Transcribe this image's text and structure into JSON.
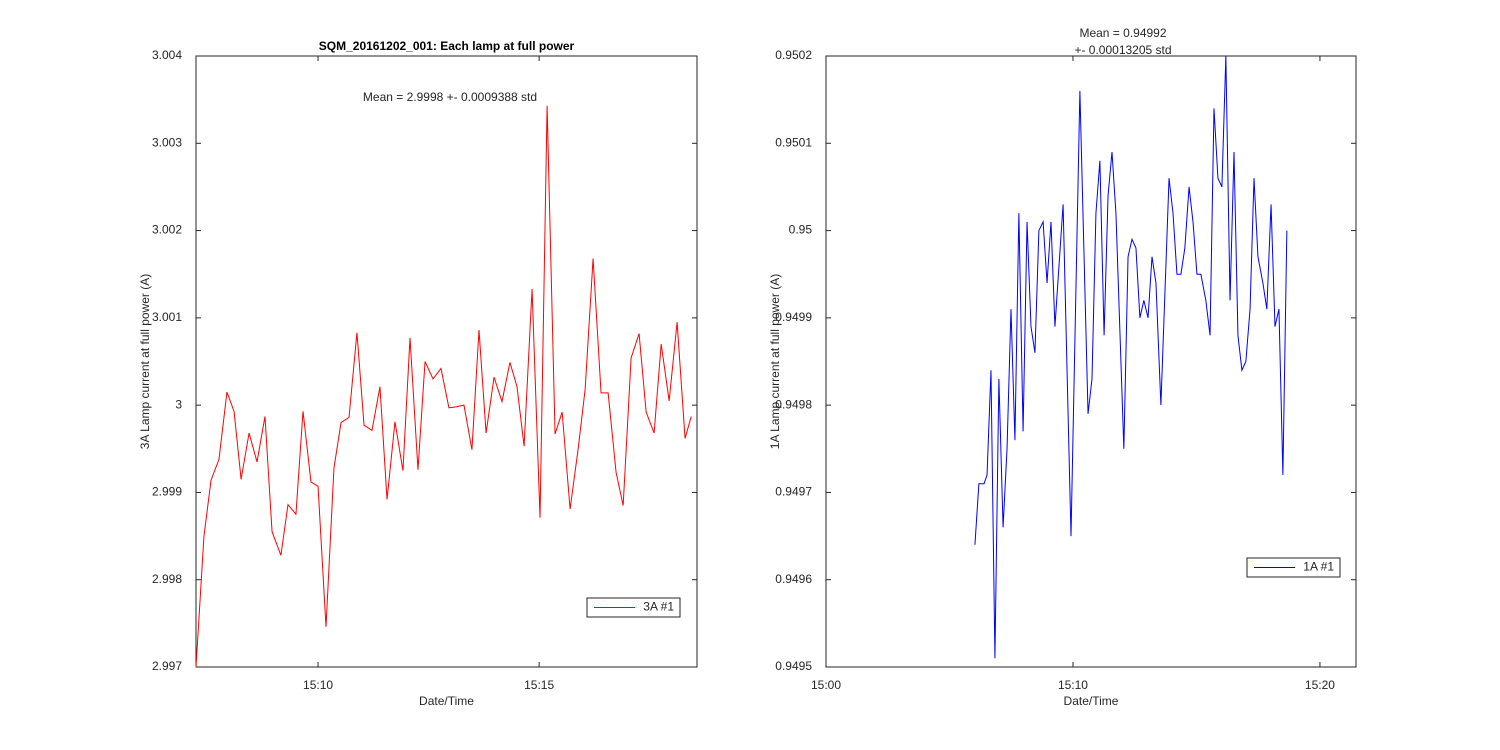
{
  "chart_data": [
    {
      "type": "line",
      "title": "SQM_20161202_001: Each lamp at full power",
      "annotation": "Mean = 2.9998 +- 0.0009388 std",
      "x_label": "Date/Time",
      "y_label": "3A Lamp current at full power (A)",
      "x": [
        7.24,
        7.42,
        7.58,
        7.76,
        7.94,
        8.1,
        8.26,
        8.44,
        8.62,
        8.8,
        8.96,
        9.16,
        9.32,
        9.5,
        9.66,
        9.84,
        10.0,
        10.18,
        10.36,
        10.52,
        10.7,
        10.88,
        11.04,
        11.22,
        11.4,
        11.56,
        11.74,
        11.92,
        12.08,
        12.26,
        12.42,
        12.6,
        12.78,
        12.96,
        13.12,
        13.3,
        13.48,
        13.64,
        13.8,
        13.98,
        14.16,
        14.34,
        14.5,
        14.66,
        14.84,
        15.02,
        15.18,
        15.36,
        15.52,
        15.7,
        15.88,
        16.04,
        16.22,
        16.4,
        16.56,
        16.74,
        16.9,
        17.08,
        17.26,
        17.42,
        17.6,
        17.76,
        17.94,
        18.12,
        18.3,
        18.44
      ],
      "series": [
        {
          "name": "3A #1",
          "color": "#ff0000",
          "values": [
            2.997,
            2.9985,
            2.99914,
            2.99938,
            3.00015,
            2.99993,
            2.99915,
            2.99968,
            2.99935,
            2.99987,
            2.99855,
            2.99828,
            2.99886,
            2.99875,
            2.99993,
            2.99912,
            2.99907,
            2.99746,
            2.99928,
            2.9998,
            2.99986,
            3.00083,
            2.99977,
            2.99971,
            3.00021,
            2.99892,
            2.99981,
            2.99925,
            3.00077,
            2.99926,
            3.0005,
            3.0003,
            3.00042,
            2.99997,
            2.99998,
            3.0,
            2.99949,
            3.00086,
            2.99968,
            3.00032,
            3.00004,
            3.00049,
            3.00021,
            2.99953,
            3.00133,
            2.99871,
            3.00343,
            2.99967,
            2.99992,
            2.99881,
            2.99949,
            3.00018,
            3.00168,
            3.00014,
            3.00014,
            2.99923,
            2.99885,
            3.00054,
            3.00082,
            2.99992,
            2.99968,
            3.0007,
            3.00005,
            3.00095,
            2.99962,
            2.99987
          ]
        }
      ],
      "xlim": [
        7.24,
        18.57
      ],
      "xticks": [
        {
          "value": 10,
          "label": "15:10"
        },
        {
          "value": 15,
          "label": "15:15"
        }
      ],
      "ylim": [
        2.997,
        3.004
      ],
      "yticks": [
        2.997,
        2.998,
        2.999,
        3,
        3.001,
        3.002,
        3.003,
        3.004
      ],
      "grid": false,
      "legend": "lower right"
    },
    {
      "type": "line",
      "title": [
        "Mean = 0.94992",
        "+- 0.00013205 std"
      ],
      "x_label": "Date/Time",
      "y_label": "1A Lamp current at full power (A)",
      "x": [
        6.03,
        6.19,
        6.4,
        6.52,
        6.68,
        6.84,
        7.0,
        7.17,
        7.33,
        7.49,
        7.65,
        7.81,
        7.98,
        8.14,
        8.3,
        8.46,
        8.62,
        8.79,
        8.95,
        9.11,
        9.27,
        9.6,
        9.92,
        10.28,
        10.61,
        10.77,
        10.93,
        11.09,
        11.26,
        11.42,
        11.58,
        11.74,
        12.06,
        12.23,
        12.39,
        12.55,
        12.71,
        12.87,
        13.04,
        13.2,
        13.36,
        13.56,
        13.89,
        14.05,
        14.21,
        14.37,
        14.53,
        14.7,
        14.86,
        15.02,
        15.18,
        15.38,
        15.55,
        15.71,
        15.87,
        16.03,
        16.19,
        16.36,
        16.52,
        16.68,
        16.84,
        17.0,
        17.17,
        17.33,
        17.49,
        17.69,
        17.85,
        18.02,
        18.18,
        18.34,
        18.5,
        18.66
      ],
      "series": [
        {
          "name": "1A #1",
          "color": "#0000ff",
          "values": [
            0.94964,
            0.94971,
            0.94971,
            0.94972,
            0.94984,
            0.94951,
            0.94983,
            0.94966,
            0.94975,
            0.94991,
            0.94976,
            0.95002,
            0.94977,
            0.95001,
            0.94989,
            0.94986,
            0.95,
            0.95001,
            0.94994,
            0.95001,
            0.94989,
            0.95003,
            0.94965,
            0.95016,
            0.94979,
            0.94983,
            0.95002,
            0.95008,
            0.94988,
            0.95004,
            0.95009,
            0.95002,
            0.94975,
            0.94997,
            0.94999,
            0.94998,
            0.9499,
            0.94992,
            0.9499,
            0.94997,
            0.94994,
            0.9498,
            0.95006,
            0.95002,
            0.94995,
            0.94995,
            0.94998,
            0.95005,
            0.95001,
            0.94995,
            0.94995,
            0.94992,
            0.94988,
            0.95014,
            0.95006,
            0.95005,
            0.9502,
            0.94992,
            0.95009,
            0.94988,
            0.94984,
            0.94985,
            0.94991,
            0.95006,
            0.94997,
            0.94994,
            0.94991,
            0.95003,
            0.94989,
            0.94991,
            0.94972,
            0.95
          ]
        }
      ],
      "xlim": [
        0,
        21.46
      ],
      "xticks": [
        {
          "value": 0,
          "label": "15:00"
        },
        {
          "value": 10,
          "label": "15:10"
        },
        {
          "value": 20,
          "label": "15:20"
        }
      ],
      "ylim": [
        0.9495,
        0.9502
      ],
      "yticks": [
        0.9495,
        0.9496,
        0.9497,
        0.9498,
        0.9499,
        0.95,
        0.9501,
        0.9502
      ],
      "grid": false,
      "legend": "lower right"
    }
  ]
}
